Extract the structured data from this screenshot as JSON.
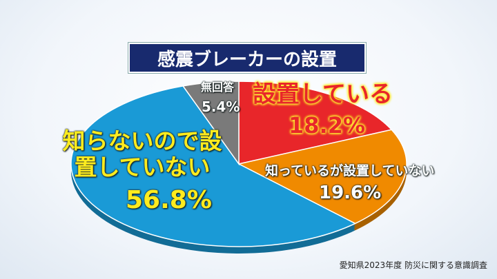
{
  "chart_data": {
    "type": "pie",
    "title": "感震ブレーカーの設置",
    "categories": [
      "設置している",
      "知っているが設置していない",
      "知らないので設置していない",
      "無回答"
    ],
    "values": [
      18.2,
      19.6,
      56.8,
      5.4
    ],
    "value_labels": [
      "18.2%",
      "19.6%",
      "56.8%",
      "5.4%"
    ],
    "colors": [
      "#e8262a",
      "#f08a00",
      "#1a9ad6",
      "#7a7a7a"
    ],
    "source": "愛知県2023年度 防災に関する意識調査"
  }
}
